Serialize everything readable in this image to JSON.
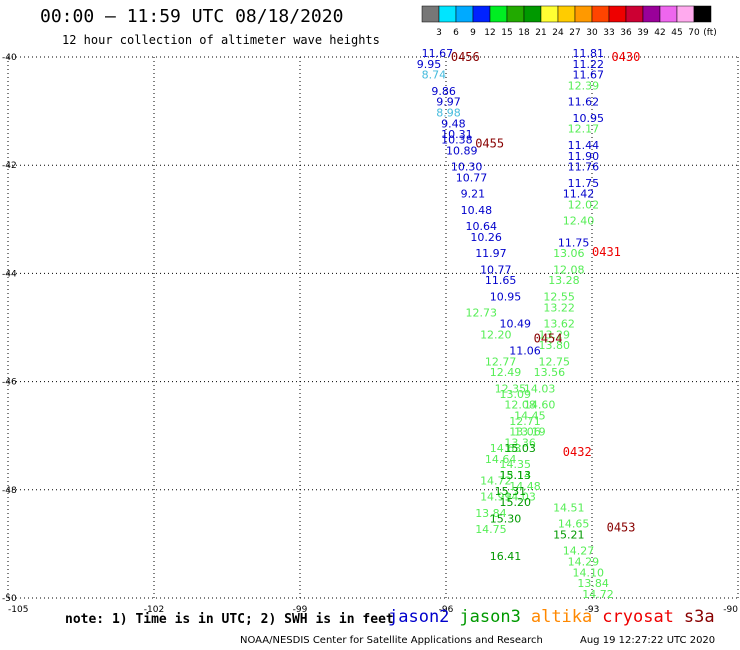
{
  "header": {
    "title": "00:00 – 11:59 UTC 08/18/2020",
    "subtitle": "12 hour collection of altimeter wave heights"
  },
  "note": "note: 1) Time is in UTC; 2) SWH is in feet",
  "legend": [
    {
      "label": "jason2",
      "color": "#0000cc"
    },
    {
      "label": "jason3",
      "color": "#009900"
    },
    {
      "label": "altika",
      "color": "#ff8800"
    },
    {
      "label": "cryosat",
      "color": "#ee0000"
    },
    {
      "label": "s3a",
      "color": "#880000"
    }
  ],
  "footer": {
    "credit": "NOAA/NESDIS Center for Satellite Applications and Research",
    "timestamp": "Aug 19 12:27:22 UTC 2020"
  },
  "colorbar": {
    "labels": [
      "3",
      "6",
      "9",
      "12",
      "15",
      "18",
      "21",
      "24",
      "27",
      "30",
      "33",
      "36",
      "39",
      "42",
      "45",
      "70"
    ],
    "unit": "(ft)",
    "colors": [
      "#777777",
      "#00e5ff",
      "#00aaff",
      "#0022ff",
      "#00ee22",
      "#22aa00",
      "#009900",
      "#ffff33",
      "#ffcc00",
      "#ff9900",
      "#ff4400",
      "#ee0000",
      "#cc0033",
      "#990099",
      "#ee66ee",
      "#ffaaee",
      "#000000"
    ]
  },
  "chart_data": {
    "type": "scatter",
    "xlim": [
      -105,
      -90
    ],
    "ylim": [
      -50,
      -40
    ],
    "x_ticks": [
      -105,
      -102,
      -99,
      -96,
      -93,
      -90
    ],
    "x_tick_labels": [
      "-105",
      "-102",
      "-99",
      "-96",
      "-93",
      "-90"
    ],
    "y_ticks": [
      -40,
      -42,
      -44,
      -46,
      -48,
      -50
    ],
    "y_tick_labels": [
      "-40",
      "-42",
      "-44",
      "-46",
      "-48",
      "-50"
    ],
    "grid": true,
    "passes": [
      {
        "label": "0456",
        "color": "#880000",
        "lon": -95.9,
        "lat": -40.0
      },
      {
        "label": "0455",
        "color": "#880000",
        "lon": -95.4,
        "lat": -41.6
      },
      {
        "label": "0430",
        "color": "#ee0000",
        "lon": -92.6,
        "lat": -40.0
      },
      {
        "label": "0431",
        "color": "#ee0000",
        "lon": -93.0,
        "lat": -43.6
      },
      {
        "label": "0454",
        "color": "#880000",
        "lon": -94.2,
        "lat": -45.2
      },
      {
        "label": "0432",
        "color": "#ee0000",
        "lon": -93.6,
        "lat": -47.3
      },
      {
        "label": "0453",
        "color": "#880000",
        "lon": -92.7,
        "lat": -48.7
      }
    ],
    "series": [
      {
        "color": "#0000cc",
        "points": [
          {
            "lon": -96.5,
            "lat": -40.0,
            "v": "11.67"
          },
          {
            "lon": -96.6,
            "lat": -40.2,
            "v": "9.95"
          },
          {
            "lon": -96.3,
            "lat": -40.7,
            "v": "9.86"
          },
          {
            "lon": -96.2,
            "lat": -40.9,
            "v": "9.97"
          },
          {
            "lon": -96.1,
            "lat": -41.3,
            "v": "9.48"
          },
          {
            "lon": -96.1,
            "lat": -41.5,
            "v": "10.31"
          },
          {
            "lon": -96.1,
            "lat": -41.6,
            "v": "10.38"
          },
          {
            "lon": -96.0,
            "lat": -41.8,
            "v": "10.89"
          },
          {
            "lon": -95.9,
            "lat": -42.1,
            "v": "10.30"
          },
          {
            "lon": -95.8,
            "lat": -42.3,
            "v": "10.77"
          },
          {
            "lon": -95.7,
            "lat": -42.6,
            "v": "9.21"
          },
          {
            "lon": -95.7,
            "lat": -42.9,
            "v": "10.48"
          },
          {
            "lon": -95.6,
            "lat": -43.2,
            "v": "10.64"
          },
          {
            "lon": -95.5,
            "lat": -43.4,
            "v": "10.26"
          },
          {
            "lon": -95.4,
            "lat": -43.7,
            "v": "11.97"
          },
          {
            "lon": -95.3,
            "lat": -44.0,
            "v": "10.77"
          },
          {
            "lon": -95.2,
            "lat": -44.2,
            "v": "11.65"
          },
          {
            "lon": -95.1,
            "lat": -44.5,
            "v": "10.95"
          },
          {
            "lon": -94.9,
            "lat": -45.0,
            "v": "10.49"
          },
          {
            "lon": -94.7,
            "lat": -45.5,
            "v": "11.06"
          },
          {
            "lon": -93.4,
            "lat": -40.0,
            "v": "11.81"
          },
          {
            "lon": -93.4,
            "lat": -40.4,
            "v": "11.67"
          },
          {
            "lon": -93.5,
            "lat": -40.9,
            "v": "11.62"
          },
          {
            "lon": -93.4,
            "lat": -41.2,
            "v": "10.95"
          },
          {
            "lon": -93.5,
            "lat": -41.7,
            "v": "11.44"
          },
          {
            "lon": -93.5,
            "lat": -41.9,
            "v": "11.90"
          },
          {
            "lon": -93.5,
            "lat": -42.1,
            "v": "11.76"
          },
          {
            "lon": -93.5,
            "lat": -42.4,
            "v": "11.75"
          },
          {
            "lon": -93.6,
            "lat": -42.6,
            "v": "11.42"
          },
          {
            "lon": -93.7,
            "lat": -43.5,
            "v": "11.75"
          }
        ]
      },
      {
        "color": "#44bbdd",
        "points": [
          {
            "lon": -96.5,
            "lat": -40.4,
            "v": "8.74"
          },
          {
            "lon": -96.2,
            "lat": -41.1,
            "v": "8.98"
          }
        ]
      },
      {
        "color": "#0000cc",
        "points": [
          {
            "lon": -93.4,
            "lat": -40.2,
            "v": "11.22"
          }
        ]
      },
      {
        "color": "#55ee55",
        "points": [
          {
            "lon": -93.5,
            "lat": -40.6,
            "v": "12.39"
          },
          {
            "lon": -93.5,
            "lat": -41.4,
            "v": "12.17"
          },
          {
            "lon": -93.5,
            "lat": -42.8,
            "v": "12.02"
          },
          {
            "lon": -93.6,
            "lat": -43.1,
            "v": "12.40"
          },
          {
            "lon": -93.8,
            "lat": -43.7,
            "v": "13.06"
          },
          {
            "lon": -93.8,
            "lat": -44.0,
            "v": "12.08"
          },
          {
            "lon": -93.9,
            "lat": -44.2,
            "v": "13.28"
          },
          {
            "lon": -94.0,
            "lat": -44.5,
            "v": "12.55"
          },
          {
            "lon": -94.0,
            "lat": -44.7,
            "v": "13.22"
          },
          {
            "lon": -94.0,
            "lat": -45.0,
            "v": "13.62"
          },
          {
            "lon": -94.1,
            "lat": -45.2,
            "v": "13.29"
          },
          {
            "lon": -94.1,
            "lat": -45.4,
            "v": "13.80"
          },
          {
            "lon": -94.1,
            "lat": -45.7,
            "v": "12.75"
          },
          {
            "lon": -94.2,
            "lat": -45.9,
            "v": "13.56"
          },
          {
            "lon": -94.4,
            "lat": -46.2,
            "v": "14.03"
          },
          {
            "lon": -94.4,
            "lat": -46.5,
            "v": "14.60"
          },
          {
            "lon": -94.6,
            "lat": -46.7,
            "v": "14.45"
          },
          {
            "lon": -94.6,
            "lat": -47.0,
            "v": "13.19"
          },
          {
            "lon": -94.8,
            "lat": -47.2,
            "v": "13.36"
          },
          {
            "lon": -94.9,
            "lat": -47.6,
            "v": "14.35"
          },
          {
            "lon": -94.9,
            "lat": -47.8,
            "v": "13.14"
          },
          {
            "lon": -94.7,
            "lat": -48.0,
            "v": "14.48"
          },
          {
            "lon": -94.8,
            "lat": -48.2,
            "v": "14.03"
          },
          {
            "lon": -93.8,
            "lat": -48.4,
            "v": "14.51"
          },
          {
            "lon": -93.7,
            "lat": -48.7,
            "v": "14.65"
          },
          {
            "lon": -93.6,
            "lat": -49.2,
            "v": "14.27"
          },
          {
            "lon": -93.5,
            "lat": -49.4,
            "v": "14.29"
          },
          {
            "lon": -93.4,
            "lat": -49.6,
            "v": "14.10"
          },
          {
            "lon": -93.3,
            "lat": -49.8,
            "v": "13.84"
          },
          {
            "lon": -93.2,
            "lat": -50.0,
            "v": "14.72"
          },
          {
            "lon": -95.6,
            "lat": -44.8,
            "v": "12.73"
          },
          {
            "lon": -95.3,
            "lat": -45.2,
            "v": "12.20"
          },
          {
            "lon": -95.2,
            "lat": -45.7,
            "v": "12.77"
          },
          {
            "lon": -95.1,
            "lat": -45.9,
            "v": "12.49"
          },
          {
            "lon": -95.0,
            "lat": -46.2,
            "v": "12.35"
          },
          {
            "lon": -94.9,
            "lat": -46.3,
            "v": "13.09"
          },
          {
            "lon": -94.8,
            "lat": -46.5,
            "v": "12.08"
          },
          {
            "lon": -94.7,
            "lat": -46.8,
            "v": "12.71"
          },
          {
            "lon": -94.7,
            "lat": -47.0,
            "v": "13.06"
          },
          {
            "lon": -95.1,
            "lat": -47.3,
            "v": "14.63"
          },
          {
            "lon": -95.2,
            "lat": -47.5,
            "v": "14.64"
          },
          {
            "lon": -95.3,
            "lat": -47.9,
            "v": "14.72"
          },
          {
            "lon": -95.3,
            "lat": -48.2,
            "v": "14.99"
          },
          {
            "lon": -95.4,
            "lat": -48.5,
            "v": "13.84"
          },
          {
            "lon": -95.4,
            "lat": -48.8,
            "v": "14.75"
          }
        ]
      },
      {
        "color": "#009900",
        "points": [
          {
            "lon": -94.8,
            "lat": -47.3,
            "v": "15.03"
          },
          {
            "lon": -94.9,
            "lat": -47.8,
            "v": "15.13"
          },
          {
            "lon": -95.0,
            "lat": -48.1,
            "v": "15.31"
          },
          {
            "lon": -94.9,
            "lat": -48.3,
            "v": "15.20"
          },
          {
            "lon": -95.1,
            "lat": -48.6,
            "v": "15.30"
          },
          {
            "lon": -95.1,
            "lat": -49.3,
            "v": "16.41"
          },
          {
            "lon": -93.8,
            "lat": -48.9,
            "v": "15.21"
          }
        ]
      }
    ]
  }
}
